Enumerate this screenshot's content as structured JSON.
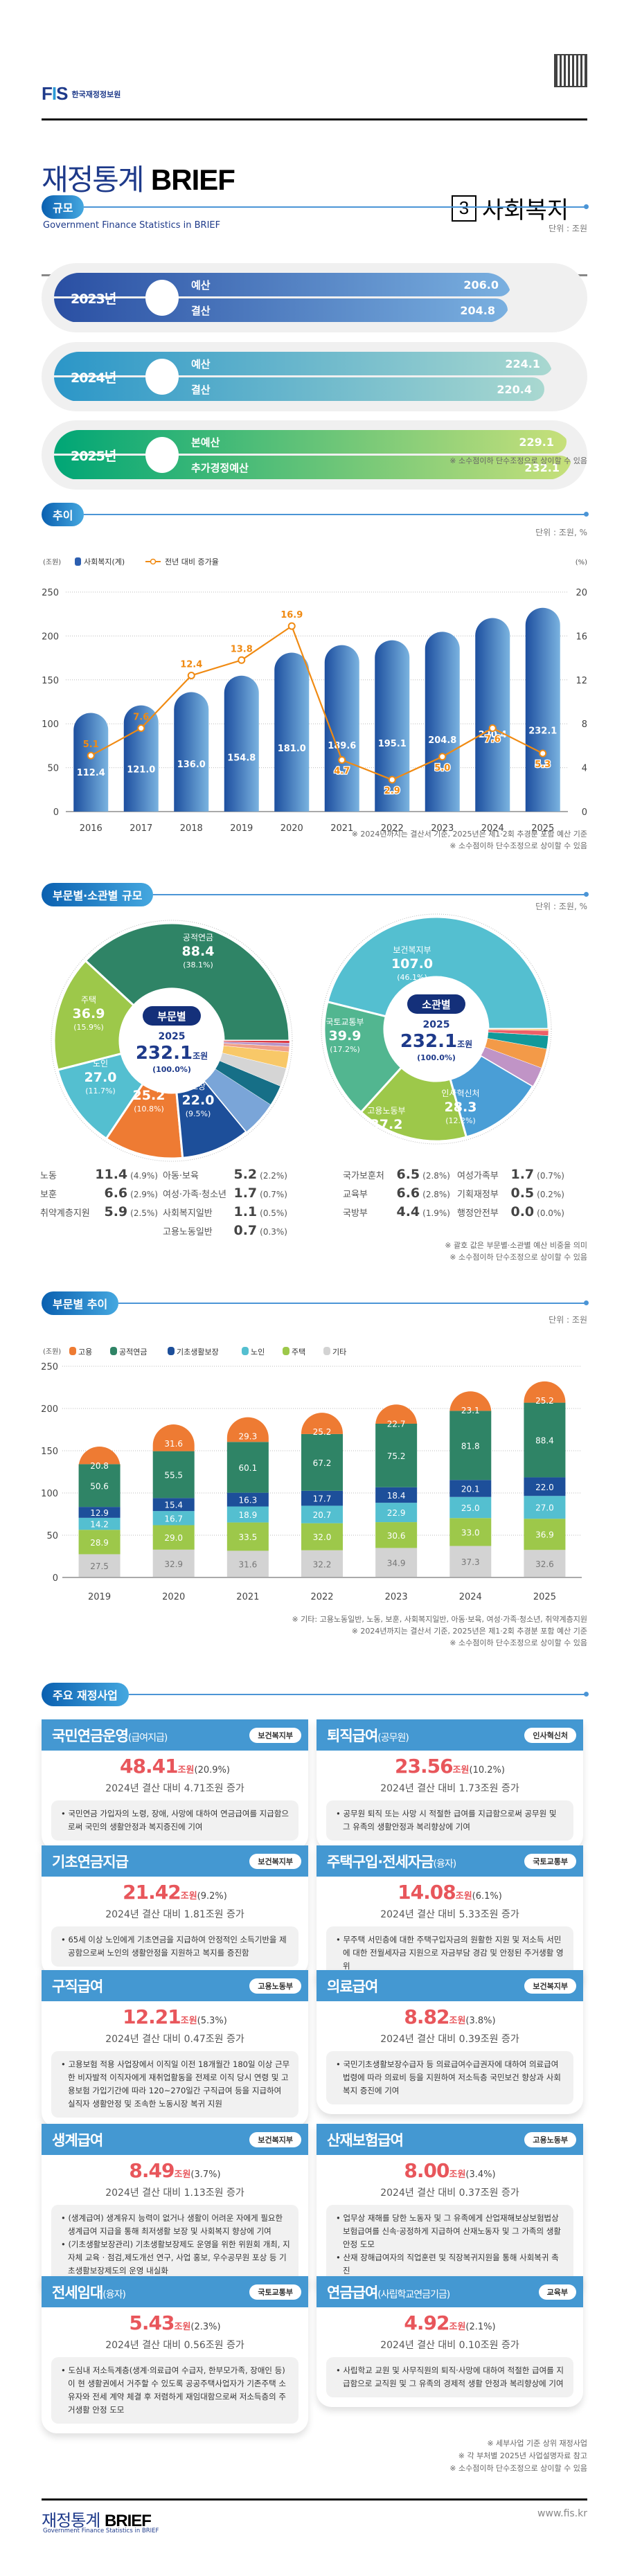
{
  "header": {
    "org_logo_mark": "FIS",
    "org_name": "한국재정정보원",
    "qr_icon": "qr-code-icon",
    "title_ko": "재정통계",
    "title_brief": "BRIEF",
    "title_en": "Government Finance Statistics in BRIEF",
    "category_number": "3",
    "category_label": "사회복지"
  },
  "sections": {
    "scale": {
      "title": "규모",
      "unit": "단위 : 조원",
      "note": "※ 소수점이하 단수조정으로 상이할 수 있음"
    },
    "trend": {
      "title": "추이",
      "unit": "단위 : 조원, %",
      "notes": [
        "※ 2024년까지는 결산서 기준, 2025년은 제1·2회 추경분 포함 예산 기준",
        "※ 소수점이하 단수조정으로 상이할 수 있음"
      ]
    },
    "breakdown": {
      "title": "부문별·소관별 규모",
      "unit": "단위 : 조원, %",
      "notes": [
        "※ 괄호 값은 부문별·소관별 예산 비중을 의미",
        "※ 소수점이하 단수조정으로 상이할 수 있음"
      ]
    },
    "sector_trend": {
      "title": "부문별 추이",
      "unit": "단위 : 조원",
      "notes": [
        "※ 기타: 고용노동일반, 노동, 보훈, 사회복지일반, 아동·보육, 여성·가족·청소년, 취약계층지원",
        "※ 2024년까지는 결산서 기준, 2025년은 제1·2회 추경분 포함 예산 기준",
        "※ 소수점이하 단수조정으로 상이할 수 있음"
      ]
    },
    "programs": {
      "title": "주요 재정사업",
      "notes": [
        "※ 세부사업 기준 상위 재정사업",
        "※ 각 부처별 2025년 사업설명자료 참고",
        "※ 소수점이하 단수조정으로 상이할 수 있음"
      ]
    }
  },
  "scale_rows": [
    {
      "year": "2023년",
      "lines": [
        {
          "label": "예산",
          "value": "206.0"
        },
        {
          "label": "결산",
          "value": "204.8"
        }
      ],
      "color_from": "#2a4fa3",
      "color_to": "#7ab0e0"
    },
    {
      "year": "2024년",
      "lines": [
        {
          "label": "예산",
          "value": "224.1"
        },
        {
          "label": "결산",
          "value": "220.4"
        }
      ],
      "color_from": "#2b96c8",
      "color_to": "#a9d8d0"
    },
    {
      "year": "2025년",
      "lines": [
        {
          "label": "본예산",
          "value": "229.1"
        },
        {
          "label": "추가경정예산",
          "value": "232.1"
        }
      ],
      "color_from": "#00a676",
      "color_to": "#c7e07a"
    }
  ],
  "chart_data": [
    {
      "type": "bar",
      "title": "추이",
      "legend": [
        "사회복지(계)",
        "전년 대비 증가율"
      ],
      "legend_position": "top-left",
      "ylabel": "(조원)",
      "y2label": "(%)",
      "ylim": [
        0,
        250
      ],
      "y2lim": [
        0,
        20
      ],
      "yticks": [
        0,
        50,
        100,
        150,
        200,
        250
      ],
      "y2ticks": [
        0,
        4,
        8,
        12,
        16,
        20
      ],
      "grid": true,
      "categories": [
        "2016",
        "2017",
        "2018",
        "2019",
        "2020",
        "2021",
        "2022",
        "2023",
        "2024",
        "2025"
      ],
      "series": [
        {
          "name": "사회복지(계)",
          "type": "bar",
          "axis": "left",
          "values": [
            112.4,
            121.0,
            136.0,
            154.8,
            181.0,
            189.6,
            195.1,
            204.8,
            220.4,
            232.1
          ],
          "color": "#2d5fb0"
        },
        {
          "name": "전년 대비 증가율",
          "type": "line",
          "axis": "right",
          "values": [
            5.1,
            7.6,
            12.4,
            13.8,
            16.9,
            4.7,
            2.9,
            5.0,
            7.6,
            5.3
          ],
          "color": "#f08a12"
        }
      ]
    },
    {
      "type": "pie",
      "title": "부문별",
      "center": {
        "label": "부문별",
        "year": "2025",
        "total": "232.1",
        "unit": "조원",
        "pct": "(100.0%)"
      },
      "slices": [
        {
          "name": "공적연금",
          "value": 88.4,
          "pct": "38.1%",
          "color": "#2f8466",
          "labeled": true
        },
        {
          "name": "주택",
          "value": 36.9,
          "pct": "15.9%",
          "color": "#9dc84a",
          "labeled": true
        },
        {
          "name": "노인",
          "value": 27.0,
          "pct": "11.7%",
          "color": "#54bfd0",
          "labeled": true
        },
        {
          "name": "고용",
          "value": 25.2,
          "pct": "10.8%",
          "color": "#ee7b33",
          "labeled": true
        },
        {
          "name": "기초생활보장",
          "value": 22.0,
          "pct": "9.5%",
          "color": "#1d4f9a",
          "labeled": true
        },
        {
          "name": "노동",
          "value": 11.4,
          "pct": "4.9%",
          "color": "#7aa5d8",
          "labeled": false
        },
        {
          "name": "보훈",
          "value": 6.6,
          "pct": "2.9%",
          "color": "#166f87",
          "labeled": false
        },
        {
          "name": "취약계층지원",
          "value": 5.9,
          "pct": "2.5%",
          "color": "#d5d5d5",
          "labeled": false
        },
        {
          "name": "아동·보육",
          "value": 5.2,
          "pct": "2.2%",
          "color": "#f8c868",
          "labeled": false
        },
        {
          "name": "여성·가족·청소년",
          "value": 1.7,
          "pct": "0.7%",
          "color": "#f0a08a",
          "labeled": false
        },
        {
          "name": "사회복지일반",
          "value": 1.1,
          "pct": "0.5%",
          "color": "#b896c8",
          "labeled": false
        },
        {
          "name": "고용노동일반",
          "value": 0.7,
          "pct": "0.3%",
          "color": "#d8202a",
          "labeled": false
        }
      ]
    },
    {
      "type": "pie",
      "title": "소관별",
      "center": {
        "label": "소관별",
        "year": "2025",
        "total": "232.1",
        "unit": "조원",
        "pct": "(100.0%)"
      },
      "slices": [
        {
          "name": "보건복지부",
          "value": 107.0,
          "pct": "46.1%",
          "color": "#54bfd0",
          "labeled": true
        },
        {
          "name": "국토교통부",
          "value": 39.9,
          "pct": "17.2%",
          "color": "#52b690",
          "labeled": true
        },
        {
          "name": "고용노동부",
          "value": 37.2,
          "pct": "16.0%",
          "color": "#9dc84a",
          "labeled": true
        },
        {
          "name": "인사혁신처",
          "value": 28.3,
          "pct": "12.2%",
          "color": "#4a9ed6",
          "labeled": true
        },
        {
          "name": "교육부",
          "value": 6.6,
          "pct": "2.8%",
          "color": "#c094c6",
          "labeled": false
        },
        {
          "name": "국가보훈처",
          "value": 6.5,
          "pct": "2.8%",
          "color": "#f39a48",
          "labeled": false
        },
        {
          "name": "국방부",
          "value": 4.4,
          "pct": "1.9%",
          "color": "#12999a",
          "labeled": false
        },
        {
          "name": "여성가족부",
          "value": 1.7,
          "pct": "0.7%",
          "color": "#ee6068",
          "labeled": false
        },
        {
          "name": "기획재정부",
          "value": 0.5,
          "pct": "0.2%",
          "color": "#f6c26a",
          "labeled": false
        },
        {
          "name": "행정안전부",
          "value": 0.0,
          "pct": "0.0%",
          "color": "#cccccc",
          "labeled": false
        }
      ]
    },
    {
      "type": "bar",
      "stacked": true,
      "title": "부문별 추이",
      "ylabel": "(조원)",
      "ylim": [
        0,
        250
      ],
      "yticks": [
        0,
        50,
        100,
        150,
        200,
        250
      ],
      "grid": true,
      "legend_position": "top-left",
      "categories": [
        "2019",
        "2020",
        "2021",
        "2022",
        "2023",
        "2024",
        "2025"
      ],
      "series": [
        {
          "name": "기타",
          "values": [
            27.5,
            32.9,
            31.6,
            32.2,
            34.9,
            37.3,
            32.6
          ],
          "color": "#d3d3d3"
        },
        {
          "name": "주택",
          "values": [
            28.9,
            29.0,
            33.5,
            32.0,
            30.6,
            33.0,
            36.9
          ],
          "color": "#9dc84a"
        },
        {
          "name": "노인",
          "values": [
            14.2,
            16.7,
            18.9,
            20.7,
            22.9,
            25.0,
            27.0
          ],
          "color": "#54bfd0"
        },
        {
          "name": "기초생활보장",
          "values": [
            12.9,
            15.4,
            16.3,
            17.7,
            18.4,
            20.1,
            22.0
          ],
          "color": "#1d4f9a"
        },
        {
          "name": "공적연금",
          "values": [
            50.6,
            55.5,
            60.1,
            67.2,
            75.2,
            81.8,
            88.4
          ],
          "color": "#2f8466"
        },
        {
          "name": "고용",
          "values": [
            20.8,
            31.6,
            29.3,
            25.2,
            22.7,
            23.1,
            25.2
          ],
          "color": "#ee7b33"
        }
      ],
      "legend": [
        "고용",
        "공적연금",
        "기초생활보장",
        "노인",
        "주택",
        "기타"
      ]
    }
  ],
  "pie_tables": {
    "sector_left": [
      [
        "노동",
        "11.4",
        "(4.9%)"
      ],
      [
        "보훈",
        "6.6",
        "(2.9%)"
      ],
      [
        "취약계층지원",
        "5.9",
        "(2.5%)"
      ]
    ],
    "sector_right": [
      [
        "아동·보육",
        "5.2",
        "(2.2%)"
      ],
      [
        "여성·가족·청소년",
        "1.7",
        "(0.7%)"
      ],
      [
        "사회복지일반",
        "1.1",
        "(0.5%)"
      ],
      [
        "고용노동일반",
        "0.7",
        "(0.3%)"
      ]
    ],
    "ministry_left": [
      [
        "국가보훈처",
        "6.5",
        "(2.8%)"
      ],
      [
        "교육부",
        "6.6",
        "(2.8%)"
      ],
      [
        "국방부",
        "4.4",
        "(1.9%)"
      ]
    ],
    "ministry_right": [
      [
        "여성가족부",
        "1.7",
        "(0.7%)"
      ],
      [
        "기획재정부",
        "0.5",
        "(0.2%)"
      ],
      [
        "행정안전부",
        "0.0",
        "(0.0%)"
      ]
    ]
  },
  "programs": [
    {
      "title": "국민연금운영",
      "sub": "(급여지급)",
      "ministry": "보건복지부",
      "amount": "48.41",
      "unit": "조원",
      "pct": "(20.9%)",
      "change": "2024년 결산 대비 4.71조원 증가",
      "desc": [
        "• 국민연금 가입자의 노령, 장애, 사망에 대하여 연금급여를 지급함으로써 국민의 생활안정과 복지증진에 기여"
      ]
    },
    {
      "title": "퇴직급여",
      "sub": "(공무원)",
      "ministry": "인사혁신처",
      "amount": "23.56",
      "unit": "조원",
      "pct": "(10.2%)",
      "change": "2024년 결산 대비 1.73조원 증가",
      "desc": [
        "• 공무원 퇴직 또는 사망 시 적절한 급여를 지급함으로써 공무원 및 그 유족의 생활안정과 복리향상에 기여"
      ]
    },
    {
      "title": "기초연금지급",
      "sub": "",
      "ministry": "보건복지부",
      "amount": "21.42",
      "unit": "조원",
      "pct": "(9.2%)",
      "change": "2024년 결산 대비 1.81조원 증가",
      "desc": [
        "• 65세 이상 노인에게 기초연금을 지급하여 안정적인 소득기반을 제공함으로써 노인의 생활안정을 지원하고 복지를 증진함"
      ]
    },
    {
      "title": "주택구입·전세자금",
      "sub": "(융자)",
      "ministry": "국토교통부",
      "amount": "14.08",
      "unit": "조원",
      "pct": "(6.1%)",
      "change": "2024년 결산 대비 5.33조원 증가",
      "desc": [
        "• 무주택 서민층에 대한 주택구입자금의 원활한 지원 및 저소득 서민에 대한 전월세자금 지원으로 자금부담 경감 및 안정된 주거생활 영위"
      ]
    },
    {
      "title": "구직급여",
      "sub": "",
      "ministry": "고용노동부",
      "amount": "12.21",
      "unit": "조원",
      "pct": "(5.3%)",
      "change": "2024년 결산 대비 0.47조원 증가",
      "desc": [
        "• 고용보험 적용 사업장에서 이직일 이전 18개월간 180일 이상 근무한 비자발적 이직자에게 재취업활동을 전제로 이직 당시 연령 및 고용보험 가입기간에 따라 120~270일간 구직급여 등을 지급하여 실직자 생활안정 및 조속한 노동시장 복귀 지원"
      ]
    },
    {
      "title": "의료급여",
      "sub": "",
      "ministry": "보건복지부",
      "amount": "8.82",
      "unit": "조원",
      "pct": "(3.8%)",
      "change": "2024년 결산 대비 0.39조원 증가",
      "desc": [
        "• 국민기초생활보장수급자 등 의료급여수급권자에 대하여 의료급여법령에 따라 의료비 등을 지원하여 저소득층 국민보건 향상과 사회복지 증진에 기여"
      ]
    },
    {
      "title": "생계급여",
      "sub": "",
      "ministry": "보건복지부",
      "amount": "8.49",
      "unit": "조원",
      "pct": "(3.7%)",
      "change": "2024년 결산 대비 1.13조원 증가",
      "desc": [
        "• (생계급여) 생계유지 능력이 없거나 생활이 어려운 자에게 필요한 생계급여 지급을 통해 최저생활 보장 및 사회복지 향상에 기여",
        "• (기초생활보장관리) 기초생활보장제도 운영을 위한 위원회 개최, 지자체 교육 · 점검,제도개선 연구, 사업 홍보, 우수공무원 포상 등 기초생활보장제도의 운영 내실화"
      ]
    },
    {
      "title": "산재보험급여",
      "sub": "",
      "ministry": "고용노동부",
      "amount": "8.00",
      "unit": "조원",
      "pct": "(3.4%)",
      "change": "2024년 결산 대비 0.37조원 증가",
      "desc": [
        "• 업무상 재해를 당한 노동자 및 그 유족에게 산업재해보상보험법상 보험급여를 신속·공정하게 지급하여 산재노동자 및 그 가족의 생활안정 도모",
        "• 산재 장해급여자의 직업훈련 및 직장복귀지원을 통해 사회복귀 촉진"
      ]
    },
    {
      "title": "전세임대",
      "sub": "(융자)",
      "ministry": "국토교통부",
      "amount": "5.43",
      "unit": "조원",
      "pct": "(2.3%)",
      "change": "2024년 결산 대비 0.56조원 증가",
      "desc": [
        "• 도심내 저소득계층(생계·의료급여 수급자, 한부모가족, 장애인 등)이 현 생활권에서 거주할 수 있도록 공공주택사업자가 기존주택 소유자와 전세 계약 체결 후 저렴하게 재임대함으로써 저소득층의 주거생활 안정 도모"
      ]
    },
    {
      "title": "연금급여",
      "sub": "(사립학교연금기금)",
      "ministry": "교육부",
      "amount": "4.92",
      "unit": "조원",
      "pct": "(2.1%)",
      "change": "2024년 결산 대비 0.10조원 증가",
      "desc": [
        "• 사립학교 교원 및 사무직원의 퇴직·사망에 대하여 적절한 급여를 지급함으로 교직원 및 그 유족의 경제적 생활 안정과 복리향상에 기여"
      ]
    }
  ],
  "footer": {
    "title_ko": "재정통계",
    "title_brief": "BRIEF",
    "title_en": "Government Finance Statistics in BRIEF",
    "url": "www.fis.kr"
  }
}
